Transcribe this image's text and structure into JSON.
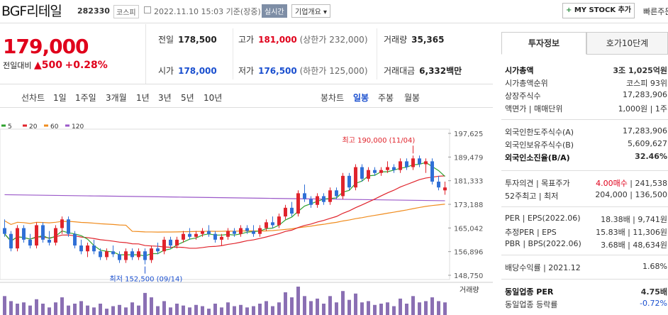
{
  "header": {
    "name": "BGF리테일",
    "code": "282330",
    "market": "코스피",
    "date": "2022.11.10 15:03 기준(장중)",
    "realtime": "실시간",
    "overview": "기업개요 ▾",
    "mystock_plus": "+",
    "mystock": "MY STOCK 추가",
    "fast": "빠른주문"
  },
  "price": {
    "current": "179,000",
    "label": "전일대비",
    "change": "▲500",
    "rate": "+0.28%"
  },
  "quote": {
    "prev": {
      "label": "전일",
      "value": "178,500"
    },
    "high": {
      "label": "고가",
      "value": "181,000",
      "extra": "(상한가 232,000)"
    },
    "volume": {
      "label": "거래량",
      "value": "35,365"
    },
    "open": {
      "label": "시가",
      "value": "178,000"
    },
    "low": {
      "label": "저가",
      "value": "176,500",
      "extra": "(하한가 125,000)"
    },
    "amount": {
      "label": "거래대금",
      "value": "6,332",
      "unit": "백만"
    }
  },
  "period": {
    "label": "선차트",
    "tabs": [
      "1일",
      "1주일",
      "3개월",
      "1년",
      "3년",
      "5년",
      "10년"
    ],
    "candle_label": "봉차트",
    "candle_tabs": [
      "일봉",
      "주봉",
      "월봉"
    ],
    "active_candle": "일봉"
  },
  "chart_data": {
    "type": "candlestick",
    "ma": [
      {
        "name": "5",
        "color": "#2fa12f"
      },
      {
        "name": "20",
        "color": "#e0232b"
      },
      {
        "name": "60",
        "color": "#f08c1e"
      },
      {
        "name": "120",
        "color": "#9b59c9"
      }
    ],
    "yticks": [
      197625,
      189479,
      181333,
      173188,
      165042,
      156896,
      148750
    ],
    "ylim": [
      148750,
      197625
    ],
    "high_label": "최고 190,000 (11/04)",
    "low_label": "최저 152,500 (09/14)",
    "volume_label": "거래량",
    "ohlc": [
      [
        165,
        168,
        162,
        163
      ],
      [
        163,
        164,
        157,
        158
      ],
      [
        158,
        166,
        157,
        165
      ],
      [
        165,
        166,
        160,
        161
      ],
      [
        161,
        163,
        158,
        159
      ],
      [
        159,
        167,
        158,
        166
      ],
      [
        166,
        167,
        160,
        161
      ],
      [
        161,
        164,
        159,
        160
      ],
      [
        160,
        166,
        159,
        165
      ],
      [
        165,
        169,
        163,
        168
      ],
      [
        168,
        169,
        162,
        163
      ],
      [
        163,
        164,
        158,
        159
      ],
      [
        159,
        161,
        156,
        157
      ],
      [
        157,
        160,
        155,
        159
      ],
      [
        159,
        161,
        156,
        157
      ],
      [
        157,
        158,
        154,
        155
      ],
      [
        155,
        158,
        154,
        157
      ],
      [
        157,
        159,
        155,
        156
      ],
      [
        156,
        157,
        153,
        154
      ],
      [
        154,
        158,
        153,
        157
      ],
      [
        157,
        158,
        154,
        155
      ],
      [
        155,
        158,
        154,
        157
      ],
      [
        157,
        158,
        152.5,
        154
      ],
      [
        154,
        159,
        153,
        158
      ],
      [
        158,
        160,
        156,
        157
      ],
      [
        157,
        162,
        156,
        161
      ],
      [
        161,
        162,
        158,
        159
      ],
      [
        159,
        162,
        158,
        161
      ],
      [
        161,
        164,
        160,
        163
      ],
      [
        163,
        165,
        161,
        162
      ],
      [
        162,
        164,
        161,
        163
      ],
      [
        163,
        165,
        162,
        164
      ],
      [
        164,
        166,
        162,
        163
      ],
      [
        163,
        164,
        160,
        161
      ],
      [
        161,
        163,
        159,
        162
      ],
      [
        162,
        165,
        161,
        164
      ],
      [
        164,
        165,
        162,
        163
      ],
      [
        163,
        166,
        162,
        165
      ],
      [
        165,
        166,
        163,
        164
      ],
      [
        164,
        166,
        162,
        163
      ],
      [
        163,
        166,
        162,
        165
      ],
      [
        165,
        168,
        164,
        167
      ],
      [
        167,
        169,
        165,
        166
      ],
      [
        166,
        170,
        165,
        169
      ],
      [
        169,
        173,
        168,
        172
      ],
      [
        172,
        174,
        169,
        170
      ],
      [
        170,
        178,
        169,
        177
      ],
      [
        177,
        180,
        174,
        175
      ],
      [
        175,
        176,
        172,
        173
      ],
      [
        173,
        177,
        172,
        176
      ],
      [
        176,
        177,
        173,
        174
      ],
      [
        174,
        179,
        173,
        178
      ],
      [
        178,
        179,
        175,
        176
      ],
      [
        176,
        184,
        175,
        183
      ],
      [
        183,
        184,
        178,
        179
      ],
      [
        179,
        187,
        178,
        186
      ],
      [
        186,
        187,
        181,
        182
      ],
      [
        182,
        186,
        181,
        185
      ],
      [
        185,
        186,
        183,
        184
      ],
      [
        184,
        186,
        183,
        185
      ],
      [
        185,
        188,
        184,
        186
      ],
      [
        186,
        187,
        184,
        185
      ],
      [
        185,
        189,
        184,
        188
      ],
      [
        188,
        189,
        185,
        186
      ],
      [
        186,
        190,
        185,
        189
      ],
      [
        189,
        190,
        186,
        187
      ],
      [
        187,
        189,
        184,
        188
      ],
      [
        188,
        189,
        180,
        181
      ],
      [
        181,
        183,
        178,
        179
      ],
      [
        178,
        181,
        176.5,
        179
      ]
    ],
    "vol": [
      30,
      22,
      18,
      20,
      15,
      25,
      18,
      12,
      20,
      28,
      15,
      18,
      22,
      15,
      12,
      18,
      10,
      14,
      16,
      12,
      20,
      15,
      35,
      28,
      14,
      22,
      12,
      18,
      15,
      12,
      16,
      14,
      10,
      18,
      12,
      20,
      14,
      16,
      12,
      14,
      18,
      22,
      14,
      20,
      36,
      28,
      45,
      30,
      22,
      26,
      18,
      30,
      20,
      38,
      24,
      34,
      20,
      22,
      16,
      18,
      20,
      14,
      26,
      18,
      30,
      20,
      22,
      28,
      22,
      20
    ]
  },
  "invest": {
    "tab1": "투자정보",
    "tab2": "호가10단계",
    "rows": [
      {
        "k": "시가총액",
        "v": "3조 1,025억원"
      },
      {
        "k": "시가총액순위",
        "v": "코스피 93위"
      },
      {
        "k": "상장주식수",
        "v": "17,283,906"
      },
      {
        "k": "액면가 | 매매단위",
        "v": "1,000원 | 1주"
      },
      {
        "k": "외국인한도주식수(A)",
        "v": "17,283,906"
      },
      {
        "k": "외국인보유주식수(B)",
        "v": "5,609,627"
      },
      {
        "k": "외국인소진율(B/A)",
        "v": "32.46%"
      },
      {
        "k": "투자의견 | 목표주가",
        "v": "4.00매수 | 241,538"
      },
      {
        "k": "52주최고 | 최저",
        "v": "204,000 | 136,500"
      },
      {
        "k": "PER | EPS(2022.06)",
        "v": "18.38배 | 9,741원"
      },
      {
        "k": "추정PER | EPS",
        "v": "15.83배 | 11,306원"
      },
      {
        "k": "PBR | BPS(2022.06)",
        "v": "3.68배 | 48,634원"
      },
      {
        "k": "배당수익률 | 2021.12",
        "v": "1.68%"
      },
      {
        "k": "동일업종 PER",
        "v": "4.75배"
      },
      {
        "k": "동일업종 등락률",
        "v": "-0.72%"
      }
    ]
  }
}
